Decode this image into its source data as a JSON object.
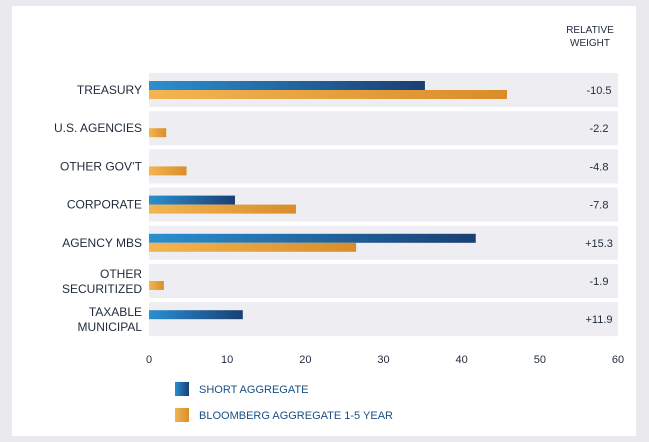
{
  "chart_data": {
    "type": "bar",
    "orientation": "horizontal",
    "categories": [
      "TREASURY",
      "U.S. AGENCIES",
      "OTHER GOV’T",
      "CORPORATE",
      "AGENCY MBS",
      "OTHER SECURITIZED",
      "TAXABLE MUNICIPAL"
    ],
    "series": [
      {
        "name": "SHORT AGGREGATE",
        "values": [
          35.3,
          0,
          0,
          11,
          41.8,
          0,
          12
        ]
      },
      {
        "name": "BLOOMBERG AGGREGATE 1-5 YEAR",
        "values": [
          45.8,
          2.2,
          4.8,
          18.8,
          26.5,
          1.9,
          0
        ]
      }
    ],
    "relative_weight": {
      "header": [
        "RELATIVE",
        "WEIGHT"
      ],
      "values": [
        "-10.5",
        "-2.2",
        "-4.8",
        "-7.8",
        "+15.3",
        "-1.9",
        "+11.9"
      ]
    },
    "xlim": [
      0,
      60
    ],
    "xticks": [
      0,
      10,
      20,
      30,
      40,
      50,
      60
    ],
    "legend_position": "bottom",
    "colors": {
      "short_aggregate": "#1b5f94",
      "bloomberg": "#e8a23a",
      "row_band": "#eeeef2"
    }
  }
}
